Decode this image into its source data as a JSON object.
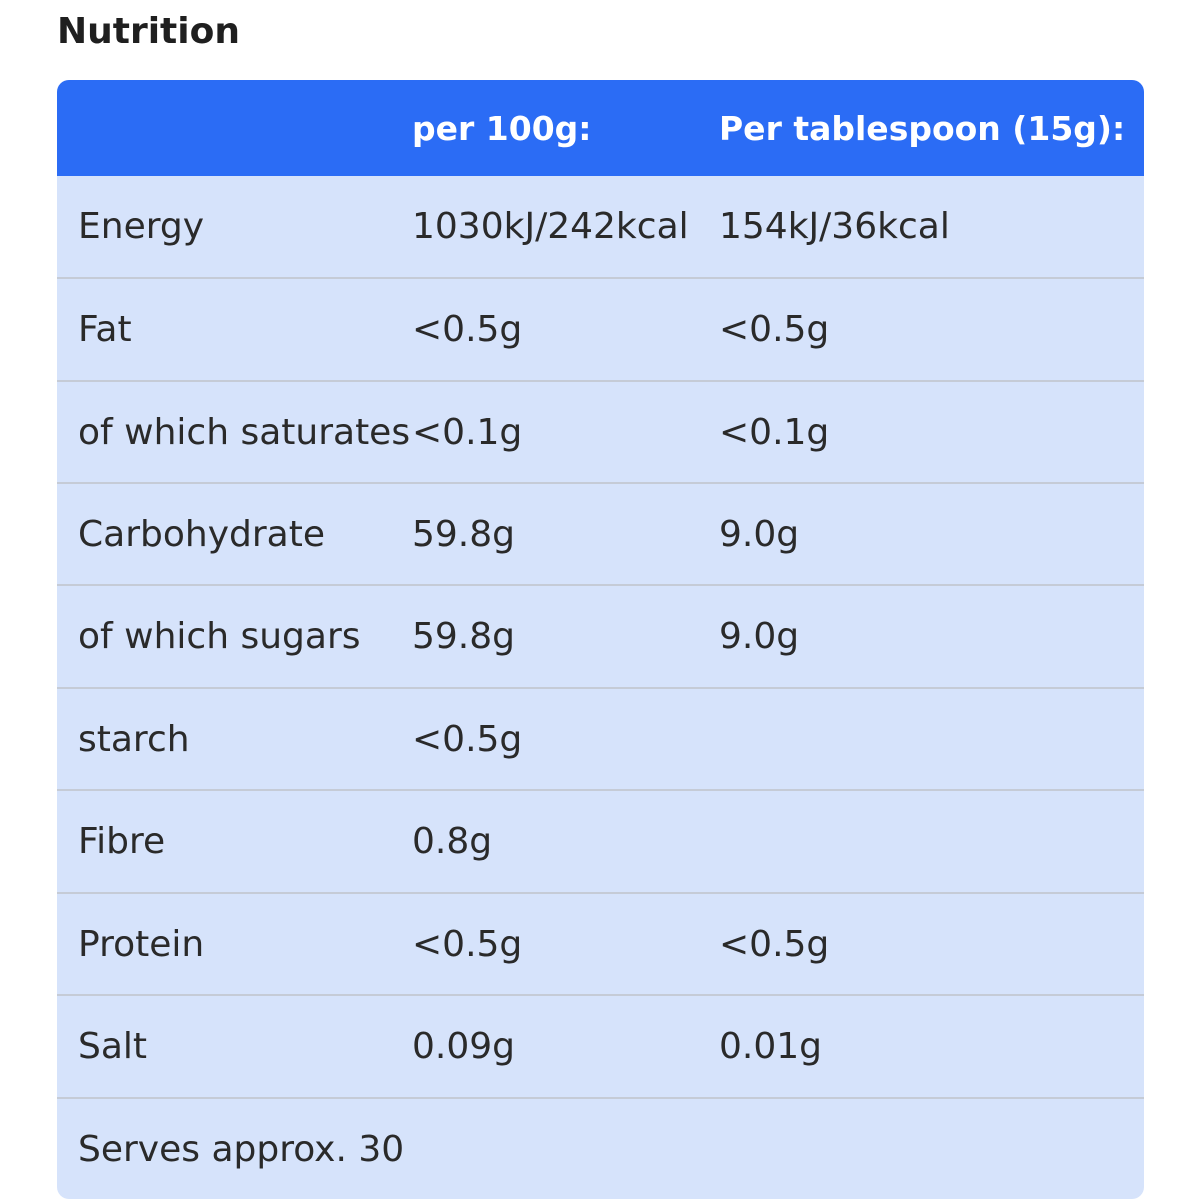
{
  "section_title": "Nutrition",
  "table": {
    "header": [
      "",
      "per 100g:",
      "Per tablespoon (15g):"
    ],
    "rows": [
      {
        "label": "Energy",
        "per100": "1030kJ/242kcal",
        "perServing": "154kJ/36kcal"
      },
      {
        "label": "Fat",
        "per100": "<0.5g",
        "perServing": "<0.5g"
      },
      {
        "label": "of which saturates",
        "per100": "<0.1g",
        "perServing": "<0.1g"
      },
      {
        "label": "Carbohydrate",
        "per100": "59.8g",
        "perServing": "9.0g"
      },
      {
        "label": "of which sugars",
        "per100": "59.8g",
        "perServing": "9.0g"
      },
      {
        "label": "starch",
        "per100": "<0.5g",
        "perServing": ""
      },
      {
        "label": "Fibre",
        "per100": "0.8g",
        "perServing": ""
      },
      {
        "label": "Protein",
        "per100": "<0.5g",
        "perServing": "<0.5g"
      },
      {
        "label": "Salt",
        "per100": "0.09g",
        "perServing": "0.01g"
      },
      {
        "label": "Serves approx. 30",
        "per100": "",
        "perServing": ""
      }
    ]
  },
  "colors": {
    "header_bg": "#2b6cf5",
    "row_bg": "#d6e3fb",
    "divider": "#c5cbd6"
  }
}
